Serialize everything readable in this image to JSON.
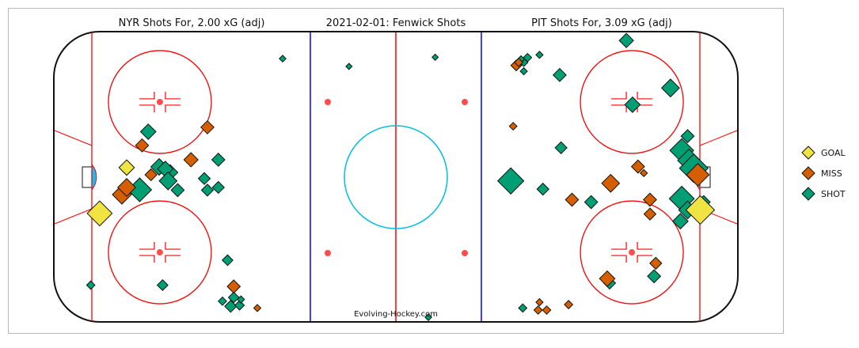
{
  "chart_data": {
    "type": "scatter",
    "title_center": "2021-02-01:  Fenwick Shots",
    "title_left": "NYR Shots For, 2.00 xG (adj)",
    "title_right": "PIT Shots For, 3.09 xG (adj)",
    "credit": "Evolving-Hockey.com",
    "xlim": [
      -100,
      100
    ],
    "ylim": [
      -42.5,
      42.5
    ],
    "colors": {
      "GOAL": "#f0e442",
      "MISS": "#d55e00",
      "SHOT": "#009e73"
    },
    "legend": {
      "position": "right",
      "entries": [
        "GOAL",
        "MISS",
        "SHOT"
      ]
    },
    "series": [
      {
        "name": "GOAL",
        "points": [
          {
            "x": -86.6,
            "y": -10.6,
            "s": 0.85
          },
          {
            "x": -78.7,
            "y": 2.8,
            "s": 0.45
          },
          {
            "x": 89.0,
            "y": -9.6,
            "s": 1.0
          }
        ]
      },
      {
        "name": "MISS",
        "points": [
          {
            "x": -55.1,
            "y": 14.6,
            "s": 0.35
          },
          {
            "x": -74.2,
            "y": 9.3,
            "s": 0.35
          },
          {
            "x": -59.9,
            "y": 5.1,
            "s": 0.4
          },
          {
            "x": -80.1,
            "y": -5.1,
            "s": 0.6
          },
          {
            "x": -71.6,
            "y": 0.7,
            "s": 0.3
          },
          {
            "x": -78.7,
            "y": -3.0,
            "s": 0.55
          },
          {
            "x": -47.4,
            "y": -32.0,
            "s": 0.35
          },
          {
            "x": -40.5,
            "y": -38.3,
            "s": 0.1
          },
          {
            "x": 35.2,
            "y": 32.7,
            "s": 0.25
          },
          {
            "x": 34.3,
            "y": 14.9,
            "s": 0.12
          },
          {
            "x": 70.8,
            "y": 3.1,
            "s": 0.35
          },
          {
            "x": 72.5,
            "y": 1.2,
            "s": 0.1
          },
          {
            "x": 62.8,
            "y": -1.8,
            "s": 0.55
          },
          {
            "x": 74.3,
            "y": -6.6,
            "s": 0.35
          },
          {
            "x": 74.3,
            "y": -10.8,
            "s": 0.3
          },
          {
            "x": 51.5,
            "y": -6.6,
            "s": 0.35
          },
          {
            "x": 76.0,
            "y": -25.2,
            "s": 0.3
          },
          {
            "x": 61.8,
            "y": -29.7,
            "s": 0.45
          },
          {
            "x": 50.5,
            "y": -37.3,
            "s": 0.15
          },
          {
            "x": 44.1,
            "y": -38.9,
            "s": 0.15
          },
          {
            "x": 41.6,
            "y": -38.9,
            "s": 0.15
          },
          {
            "x": 42.0,
            "y": -36.6,
            "s": 0.1
          },
          {
            "x": 88.3,
            "y": 0.7,
            "s": 0.75
          },
          {
            "x": 35.9,
            "y": 33.6,
            "s": 0.15
          }
        ]
      },
      {
        "name": "SHOT",
        "points": [
          {
            "x": -72.4,
            "y": 13.3,
            "s": 0.45
          },
          {
            "x": -69.2,
            "y": 3.0,
            "s": 0.5
          },
          {
            "x": -66.0,
            "y": 1.4,
            "s": 0.45
          },
          {
            "x": -67.4,
            "y": 2.4,
            "s": 0.45
          },
          {
            "x": -66.6,
            "y": -1.1,
            "s": 0.55
          },
          {
            "x": -74.9,
            "y": -3.7,
            "s": 0.8
          },
          {
            "x": -51.9,
            "y": 5.1,
            "s": 0.35
          },
          {
            "x": -56.0,
            "y": -0.4,
            "s": 0.3
          },
          {
            "x": -51.9,
            "y": -3.0,
            "s": 0.3
          },
          {
            "x": -55.1,
            "y": -3.8,
            "s": 0.3
          },
          {
            "x": -63.8,
            "y": -3.8,
            "s": 0.35
          },
          {
            "x": -49.2,
            "y": -24.3,
            "s": 0.25
          },
          {
            "x": -68.2,
            "y": -31.6,
            "s": 0.25
          },
          {
            "x": -50.7,
            "y": -36.3,
            "s": 0.15
          },
          {
            "x": -47.4,
            "y": -35.2,
            "s": 0.25
          },
          {
            "x": -48.3,
            "y": -37.8,
            "s": 0.3
          },
          {
            "x": -45.7,
            "y": -37.5,
            "s": 0.2
          },
          {
            "x": -45.3,
            "y": -35.8,
            "s": 0.1
          },
          {
            "x": -89.2,
            "y": -31.6,
            "s": 0.15
          },
          {
            "x": -33.1,
            "y": 34.7,
            "s": 0.08
          },
          {
            "x": -13.7,
            "y": 32.4,
            "s": 0.06
          },
          {
            "x": 11.5,
            "y": 35.1,
            "s": 0.06
          },
          {
            "x": 9.5,
            "y": -41.0,
            "s": 0.08
          },
          {
            "x": 67.4,
            "y": 40.0,
            "s": 0.4
          },
          {
            "x": 37.4,
            "y": 33.6,
            "s": 0.15
          },
          {
            "x": 38.5,
            "y": 35.0,
            "s": 0.15
          },
          {
            "x": 36.6,
            "y": 34.5,
            "s": 0.1
          },
          {
            "x": 37.4,
            "y": 31.0,
            "s": 0.1
          },
          {
            "x": 42.0,
            "y": 35.8,
            "s": 0.1
          },
          {
            "x": 47.9,
            "y": 29.9,
            "s": 0.35
          },
          {
            "x": 80.3,
            "y": 26.1,
            "s": 0.55
          },
          {
            "x": 69.2,
            "y": 21.2,
            "s": 0.45
          },
          {
            "x": 48.3,
            "y": 8.6,
            "s": 0.3
          },
          {
            "x": 33.6,
            "y": -1.1,
            "s": 0.9
          },
          {
            "x": 43.0,
            "y": -3.5,
            "s": 0.3
          },
          {
            "x": 57.1,
            "y": -7.3,
            "s": 0.35
          },
          {
            "x": 83.6,
            "y": 7.8,
            "s": 0.8
          },
          {
            "x": 85.7,
            "y": 4.9,
            "s": 0.75
          },
          {
            "x": 87.1,
            "y": 2.6,
            "s": 1.0
          },
          {
            "x": 83.6,
            "y": -6.3,
            "s": 0.85
          },
          {
            "x": 85.3,
            "y": -9.6,
            "s": 0.55
          },
          {
            "x": 83.2,
            "y": -12.9,
            "s": 0.45
          },
          {
            "x": 75.5,
            "y": -29.0,
            "s": 0.35
          },
          {
            "x": 62.5,
            "y": -31.0,
            "s": 0.3
          },
          {
            "x": 90.0,
            "y": -7.3,
            "s": 0.35
          },
          {
            "x": 85.3,
            "y": 12.0,
            "s": 0.35
          },
          {
            "x": 37.1,
            "y": -38.3,
            "s": 0.15
          }
        ]
      }
    ]
  }
}
